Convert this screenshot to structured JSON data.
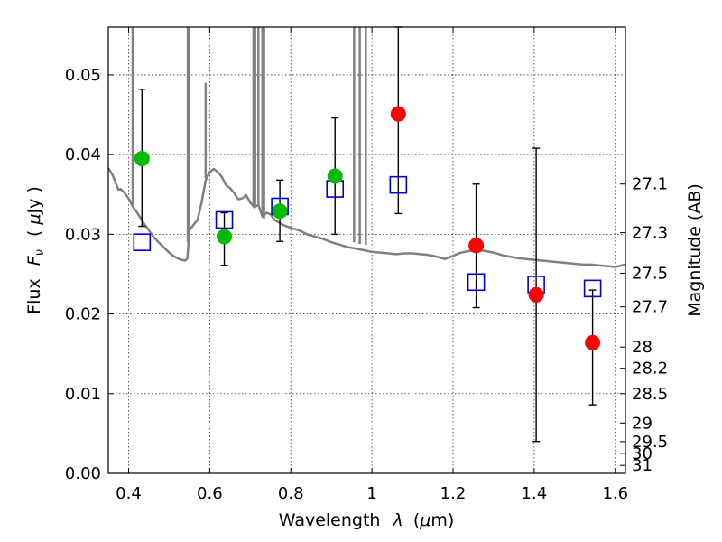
{
  "chart_data": {
    "type": "scatter",
    "xlabel_text": "Wavelength",
    "xlabel_symbol": "λ",
    "xlabel_unit_prefix": "(",
    "xlabel_unit_mu": "μ",
    "xlabel_unit_rest": "m)",
    "ylabel_text": "Flux",
    "ylabel_symbol": "F",
    "ylabel_sub": "ν",
    "ylabel_unit_prefix": "(",
    "ylabel_unit_mu": "μ",
    "ylabel_unit_rest": "Jy )",
    "y2label": "Magnitude (AB)",
    "xlim": [
      0.35,
      1.625
    ],
    "ylim": [
      0.0,
      0.056
    ],
    "grid": true,
    "x_ticks": [
      0.4,
      0.6,
      0.8,
      1.0,
      1.2,
      1.4,
      1.6
    ],
    "x_tick_labels": [
      "0.4",
      "0.6",
      "0.8",
      "1",
      "1.2",
      "1.4",
      "1.6"
    ],
    "y_ticks": [
      0.0,
      0.01,
      0.02,
      0.03,
      0.04,
      0.05
    ],
    "y_tick_labels": [
      "0.00",
      "0.01",
      "0.02",
      "0.03",
      "0.04",
      "0.05"
    ],
    "y2_ticks": [
      {
        "label": "27.1",
        "value": 27.1
      },
      {
        "label": "27.3",
        "value": 27.3
      },
      {
        "label": "27.5",
        "value": 27.5
      },
      {
        "label": "27.7",
        "value": 27.7
      },
      {
        "label": "28",
        "value": 28.0
      },
      {
        "label": "28.2",
        "value": 28.2
      },
      {
        "label": "28.5",
        "value": 28.5
      },
      {
        "label": "29",
        "value": 29.0
      },
      {
        "label": "29.5",
        "value": 29.5
      },
      {
        "label": "30",
        "value": 30.0
      },
      {
        "label": "31",
        "value": 31.0
      }
    ],
    "colors": {
      "detected": "#00bb00",
      "upper": "#ff0000",
      "model_box": "#0000cc",
      "spectrum": "#808080",
      "errorbar": "#000000"
    },
    "spectrum": {
      "x": [
        0.35,
        0.36,
        0.37,
        0.375,
        0.38,
        0.39,
        0.4,
        0.41,
        0.42,
        0.43,
        0.44,
        0.45,
        0.46,
        0.47,
        0.48,
        0.49,
        0.5,
        0.51,
        0.52,
        0.53,
        0.54,
        0.545,
        0.55,
        0.56,
        0.57,
        0.58,
        0.59,
        0.6,
        0.61,
        0.62,
        0.63,
        0.64,
        0.65,
        0.66,
        0.67,
        0.68,
        0.69,
        0.7,
        0.71,
        0.72,
        0.73,
        0.74,
        0.75,
        0.76,
        0.77,
        0.78,
        0.8,
        0.82,
        0.84,
        0.86,
        0.88,
        0.9,
        0.92,
        0.94,
        0.96,
        0.98,
        1.0,
        1.02,
        1.04,
        1.06,
        1.08,
        1.1,
        1.12,
        1.14,
        1.16,
        1.18,
        1.2,
        1.22,
        1.24,
        1.26,
        1.28,
        1.3,
        1.32,
        1.34,
        1.36,
        1.38,
        1.4,
        1.42,
        1.44,
        1.46,
        1.48,
        1.5,
        1.52,
        1.54,
        1.56,
        1.58,
        1.6,
        1.625
      ],
      "y": [
        0.0383,
        0.0375,
        0.0362,
        0.0356,
        0.0357,
        0.0352,
        0.0345,
        0.0335,
        0.0328,
        0.032,
        0.0312,
        0.0305,
        0.0298,
        0.0292,
        0.0287,
        0.0282,
        0.0277,
        0.0273,
        0.027,
        0.0268,
        0.0267,
        0.027,
        0.0305,
        0.0312,
        0.0318,
        0.034,
        0.0368,
        0.0378,
        0.0382,
        0.0378,
        0.0372,
        0.0362,
        0.0358,
        0.0352,
        0.0344,
        0.0345,
        0.0349,
        0.034,
        0.0334,
        0.0337,
        0.0322,
        0.0327,
        0.0325,
        0.0318,
        0.0315,
        0.0312,
        0.0308,
        0.0305,
        0.03,
        0.0297,
        0.0294,
        0.029,
        0.0287,
        0.0284,
        0.0282,
        0.028,
        0.0278,
        0.0277,
        0.0276,
        0.0275,
        0.0276,
        0.0276,
        0.0275,
        0.0274,
        0.0272,
        0.0269,
        0.0273,
        0.0277,
        0.0279,
        0.028,
        0.0279,
        0.0277,
        0.0274,
        0.0272,
        0.027,
        0.0269,
        0.0268,
        0.0267,
        0.0266,
        0.0265,
        0.0264,
        0.0263,
        0.0262,
        0.0262,
        0.0261,
        0.026,
        0.0259,
        0.0262
      ]
    },
    "emission_lines": [
      {
        "x": 0.4101,
        "low": 0.0335
      },
      {
        "x": 0.411,
        "low": 0.0336
      },
      {
        "x": 0.546,
        "low": 0.029
      },
      {
        "x": 0.548,
        "low": 0.03
      },
      {
        "x": 0.59,
        "low": 0.037,
        "high": 0.049
      },
      {
        "x": 0.708,
        "low": 0.0336
      },
      {
        "x": 0.712,
        "low": 0.0334
      },
      {
        "x": 0.72,
        "low": 0.0336
      },
      {
        "x": 0.73,
        "low": 0.0325
      },
      {
        "x": 0.734,
        "low": 0.032
      },
      {
        "x": 0.956,
        "low": 0.029
      },
      {
        "x": 0.97,
        "low": 0.0288
      },
      {
        "x": 0.985,
        "low": 0.0287
      }
    ],
    "series": [
      {
        "marker": "square",
        "x": [
          0.433,
          0.636,
          0.773,
          0.909,
          1.065,
          1.257,
          1.405,
          1.544
        ],
        "values": [
          0.029,
          0.0318,
          0.0335,
          0.0357,
          0.0362,
          0.024,
          0.0237,
          0.0232
        ]
      },
      {
        "marker": "circle",
        "color_key": "detected",
        "x": [
          0.433,
          0.636,
          0.773,
          0.909
        ],
        "values": [
          0.0395,
          0.0297,
          0.0329,
          0.0373
        ],
        "err_low": [
          0.031,
          0.0261,
          0.0291,
          0.03
        ],
        "err_high": [
          0.0482,
          0.0327,
          0.0368,
          0.0446
        ]
      },
      {
        "marker": "circle",
        "color_key": "upper",
        "x": [
          1.065,
          1.257,
          1.405,
          1.544
        ],
        "values": [
          0.0451,
          0.0286,
          0.0224,
          0.0164
        ],
        "err_low": [
          0.0326,
          0.0208,
          0.004,
          0.0086
        ],
        "err_high": [
          0.056,
          0.0363,
          0.0408,
          0.023
        ]
      }
    ]
  }
}
